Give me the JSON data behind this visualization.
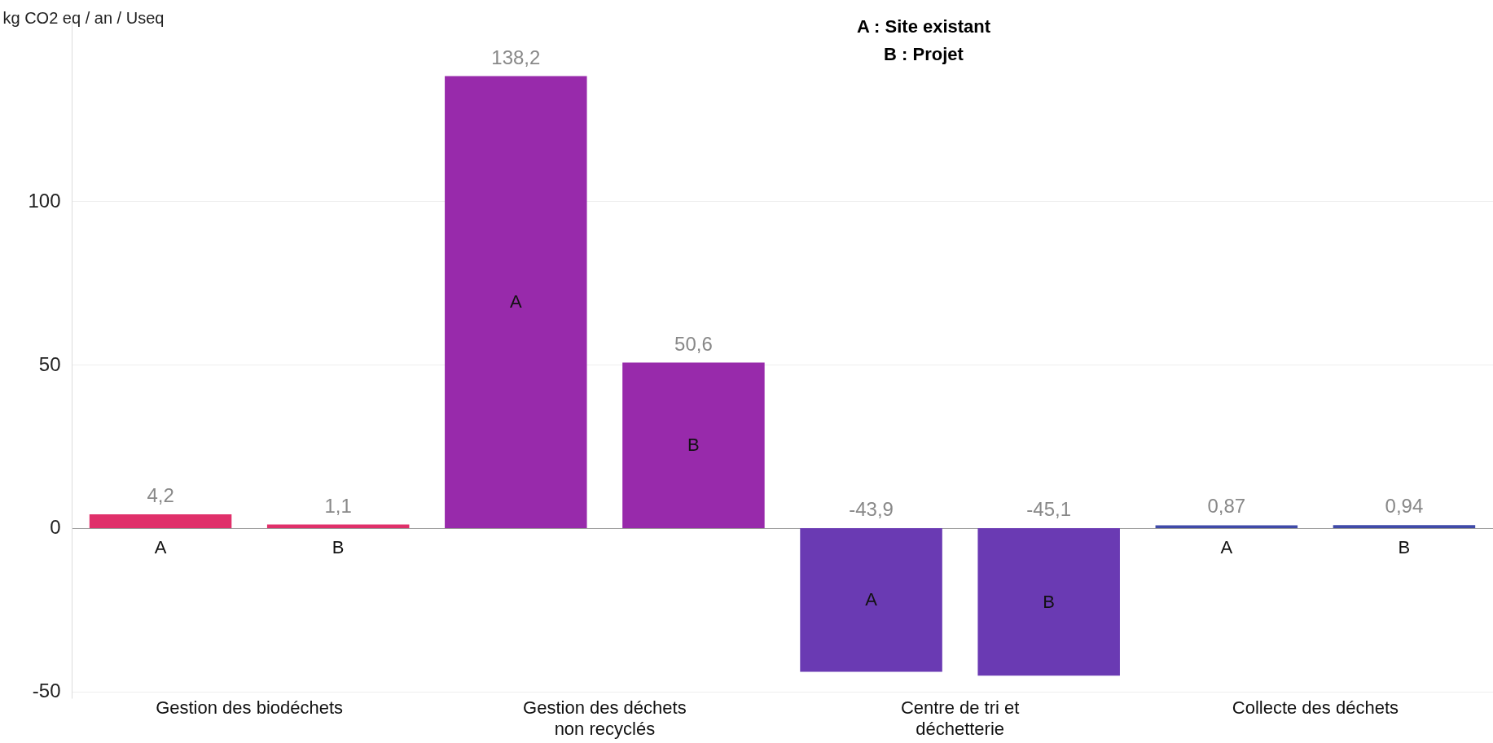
{
  "chart_data": {
    "type": "bar",
    "title": "A : Site existant",
    "subtitle": "B : Projet",
    "ylabel": "kg CO2 eq / an / Useq",
    "categories": [
      "A",
      "B",
      "A",
      "B",
      "A",
      "B",
      "A",
      "B"
    ],
    "values": [
      4.2,
      1.1,
      138.2,
      50.6,
      -43.9,
      -45.1,
      0.87,
      0.94
    ],
    "value_labels": [
      "4,2",
      "1,1",
      "138,2",
      "50,6",
      "-43,9",
      "-45,1",
      "0,87",
      "0,94"
    ],
    "colors": [
      "#e0306a",
      "#e0306a",
      "#982aab",
      "#982aab",
      "#6a3ab3",
      "#6a3ab3",
      "#3f4aa8",
      "#3f4aa8"
    ],
    "annotations": [
      "Gestion des biodéchets",
      "Gestion des déchets non recyclés",
      "Centre de tri et déchetterie",
      "Collecte des déchets"
    ],
    "ylim": [
      -52,
      155
    ],
    "yticks": [
      -50,
      0,
      50,
      100
    ],
    "grid": "y"
  }
}
